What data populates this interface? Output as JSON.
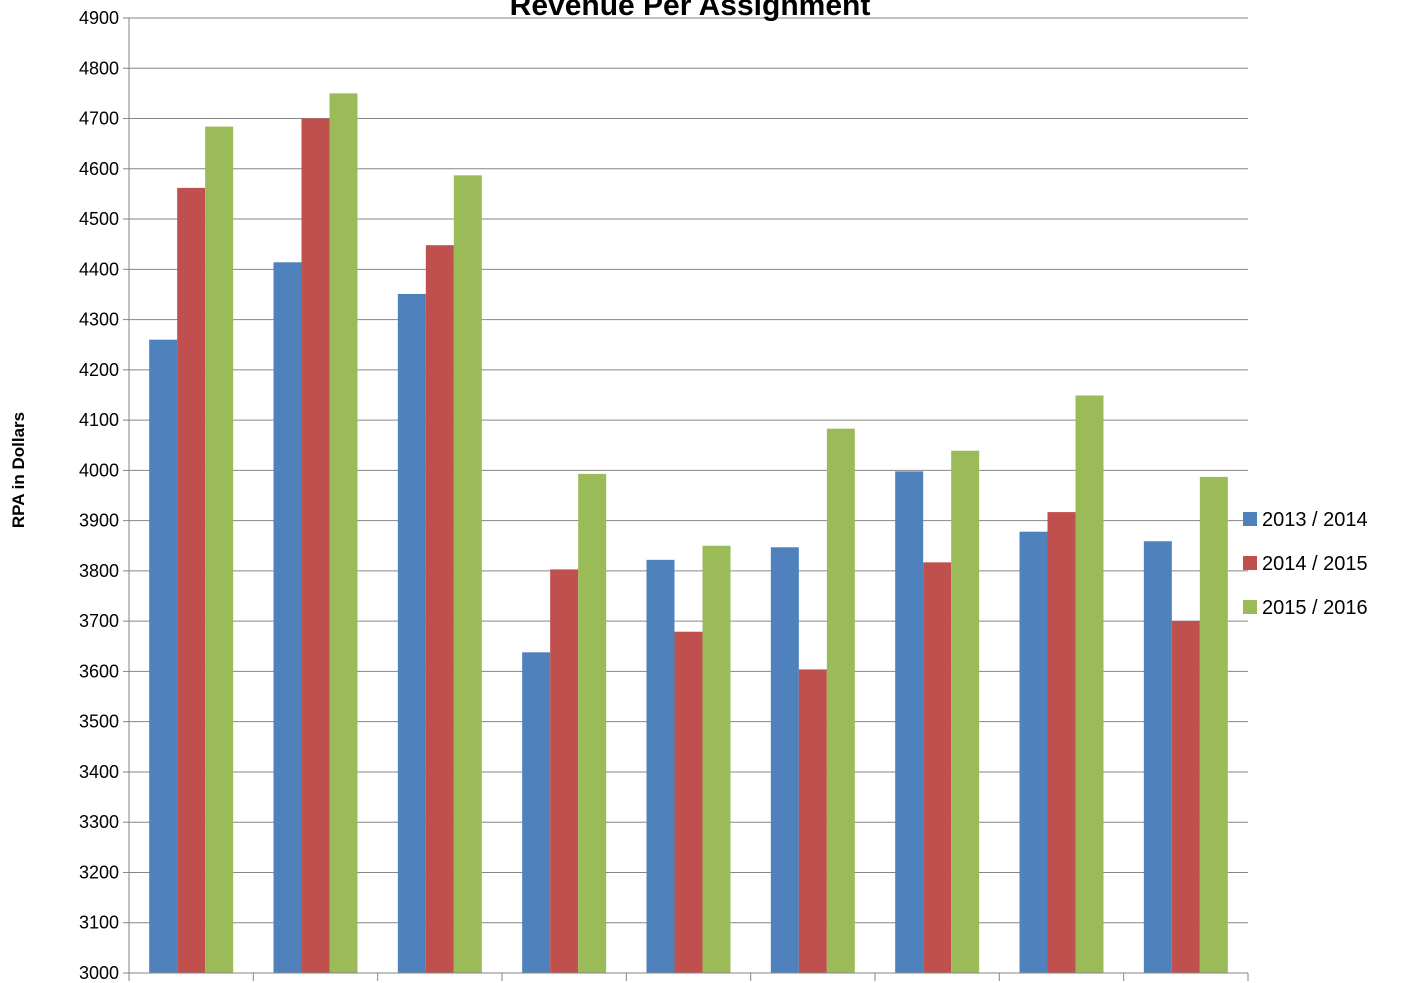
{
  "chart_data": {
    "type": "bar",
    "title": "Revenue Per Assignment",
    "ylabel": "RPA in Dollars",
    "xlabel": "",
    "ylim": [
      3000,
      4900
    ],
    "ytick_step": 100,
    "ytick_labels": [
      "3000",
      "3100",
      "3200",
      "3300",
      "3400",
      "3500",
      "3600",
      "3700",
      "3800",
      "3900",
      "4000",
      "4100",
      "4200",
      "4300",
      "4400",
      "4500",
      "4600",
      "4700",
      "4800",
      "4900"
    ],
    "grid": true,
    "legend_position": "right",
    "categories": [
      "",
      "",
      "",
      "",
      "",
      "",
      "",
      "",
      ""
    ],
    "series": [
      {
        "name": "2013 / 2014",
        "color": "#4F81BD",
        "values": [
          4260,
          4414,
          4351,
          3638,
          3822,
          3847,
          3998,
          3878,
          3859
        ]
      },
      {
        "name": "2014 / 2015",
        "color": "#C0504D",
        "values": [
          4562,
          4700,
          4448,
          3803,
          3679,
          3604,
          3817,
          3917,
          3700
        ]
      },
      {
        "name": "2015 / 2016",
        "color": "#9BBB59",
        "values": [
          4684,
          4750,
          4587,
          3993,
          3850,
          4083,
          4039,
          4149,
          3987
        ]
      }
    ]
  }
}
